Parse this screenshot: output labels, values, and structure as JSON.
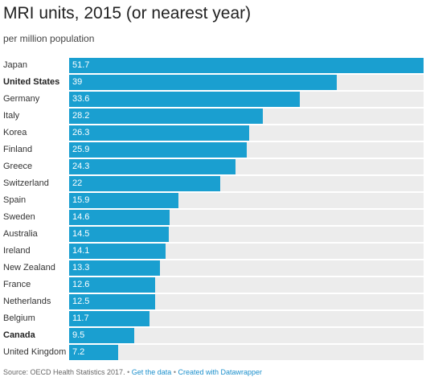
{
  "title": "MRI units, 2015 (or nearest year)",
  "subtitle": "per million population",
  "colors": {
    "bar": "#1a9fd0",
    "track": "#ececec",
    "link": "#1a8fcc"
  },
  "chart_data": {
    "type": "bar",
    "orientation": "horizontal",
    "categories": [
      "Japan",
      "United States",
      "Germany",
      "Italy",
      "Korea",
      "Finland",
      "Greece",
      "Switzerland",
      "Spain",
      "Sweden",
      "Australia",
      "Ireland",
      "New Zealand",
      "France",
      "Netherlands",
      "Belgium",
      "Canada",
      "United Kingdom"
    ],
    "values": [
      51.7,
      39,
      33.6,
      28.2,
      26.3,
      25.9,
      24.3,
      22,
      15.9,
      14.6,
      14.5,
      14.1,
      13.3,
      12.6,
      12.5,
      11.7,
      9.5,
      7.2
    ],
    "value_labels": [
      "51.7",
      "39",
      "33.6",
      "28.2",
      "26.3",
      "25.9",
      "24.3",
      "22",
      "15.9",
      "14.6",
      "14.5",
      "14.1",
      "13.3",
      "12.6",
      "12.5",
      "11.7",
      "9.5",
      "7.2"
    ],
    "highlighted": [
      "United States",
      "Canada"
    ],
    "xlim": [
      0,
      51.7
    ],
    "grid": false,
    "legend": "none"
  },
  "footer": {
    "source": "Source: OECD Health Statistics 2017.",
    "separator1": "•",
    "get_data": "Get the data",
    "separator2": "•",
    "created_with": "Created with Datawrapper"
  }
}
